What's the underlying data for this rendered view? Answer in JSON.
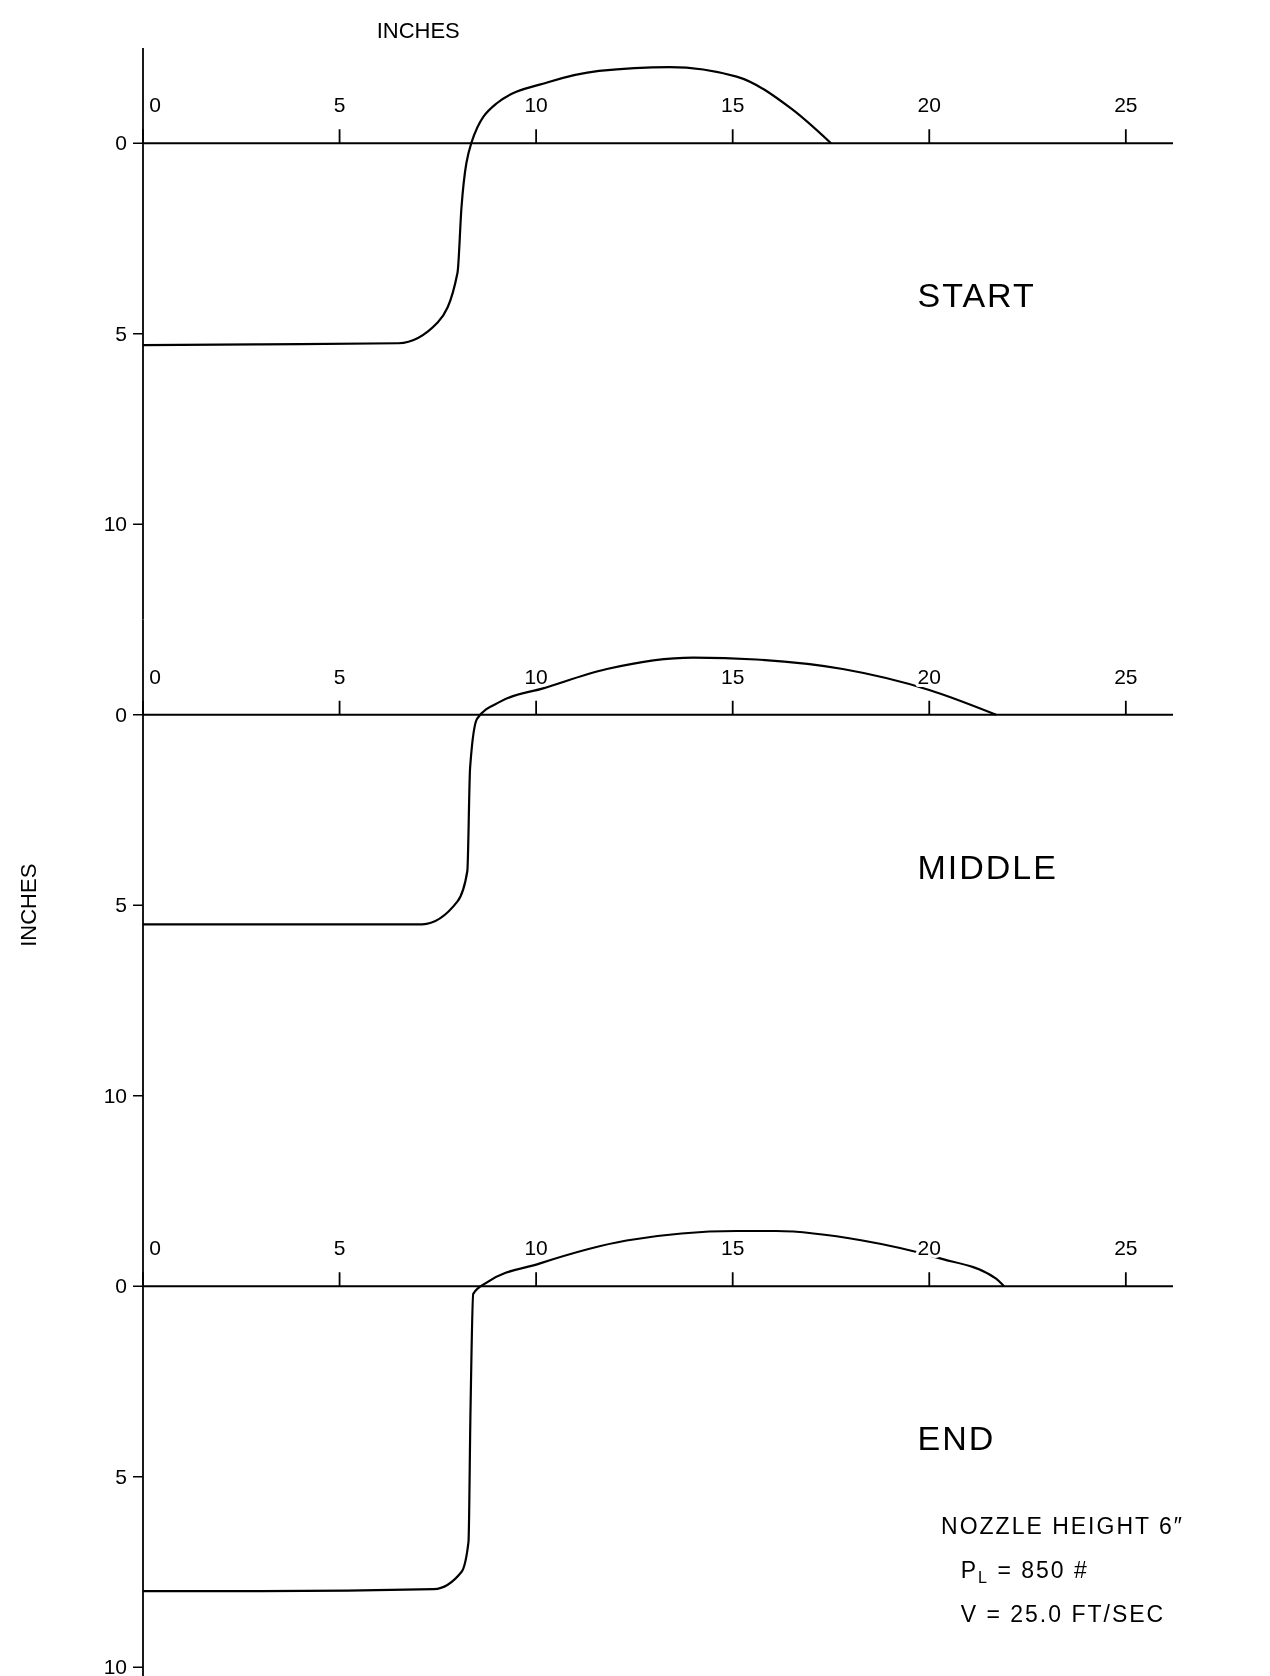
{
  "chart_data": [
    {
      "type": "line",
      "xlabel": "INCHES",
      "annotations": [
        "START"
      ],
      "xlim": [
        0,
        26.2
      ],
      "ylim": [
        12.5,
        -2.5
      ],
      "xticks": [
        0,
        5,
        10,
        15,
        20,
        25
      ],
      "yticks": [
        0,
        5,
        10
      ],
      "grid": false,
      "series": [
        {
          "color": "#000000",
          "x": [
            0,
            3,
            6.5,
            7.5,
            8.0,
            8.1,
            8.35,
            9.0,
            10.3,
            11.6,
            13.4,
            15.1,
            16.5,
            17.5
          ],
          "values": [
            5.3,
            5.28,
            5.25,
            4.7,
            3.4,
            1.7,
            0,
            -1.05,
            -1.6,
            -1.9,
            -2.0,
            -1.75,
            -0.9,
            0
          ]
        }
      ]
    },
    {
      "type": "line",
      "ylabel": "INCHES",
      "annotations": [
        "MIDDLE"
      ],
      "xlim": [
        0,
        26.2
      ],
      "ylim": [
        12.5,
        -2.5
      ],
      "xticks": [
        0,
        5,
        10,
        15,
        20,
        25
      ],
      "yticks": [
        0,
        5,
        10
      ],
      "grid": false,
      "series": [
        {
          "color": "#000000",
          "x": [
            0,
            3,
            7.1,
            8.0,
            8.25,
            8.32,
            8.5,
            9.1,
            10.2,
            11.8,
            14,
            15.6,
            17.8,
            20,
            21.7
          ],
          "values": [
            5.5,
            5.5,
            5.5,
            4.9,
            4.1,
            1.4,
            0.1,
            -0.35,
            -0.7,
            -1.2,
            -1.5,
            -1.45,
            -1.2,
            -0.65,
            0
          ]
        }
      ]
    },
    {
      "type": "line",
      "annotations": [
        "END",
        "NOZZLE HEIGHT  6″",
        "P$_{L}$ = 850 #",
        "V = 25.0 FT/SEC"
      ],
      "xlim": [
        0,
        26.2
      ],
      "ylim": [
        10.6,
        -2.5
      ],
      "xticks": [
        0,
        5,
        10,
        15,
        20,
        25
      ],
      "yticks": [
        0,
        5,
        10
      ],
      "grid": false,
      "series": [
        {
          "color": "#000000",
          "x": [
            0,
            3,
            7.4,
            8.1,
            8.28,
            8.33,
            8.4,
            8.75,
            10.1,
            12.3,
            15.1,
            16.1,
            18.3,
            20.2,
            21.7,
            21.9
          ],
          "values": [
            8.0,
            8.0,
            7.95,
            7.5,
            6.7,
            3.3,
            0.2,
            -0.1,
            -0.6,
            -1.2,
            -1.45,
            -1.45,
            -1.2,
            -0.75,
            -0.2,
            0
          ]
        }
      ]
    }
  ]
}
